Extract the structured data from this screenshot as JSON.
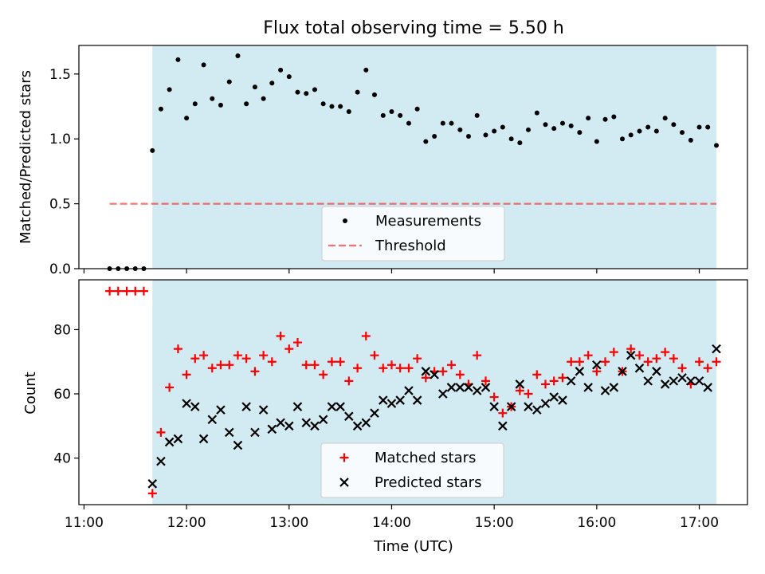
{
  "chart_data": {
    "title": "Flux total observing time = 5.50 h",
    "xlabel": "Time (UTC)",
    "x_ticks": [
      "11:00",
      "12:00",
      "13:00",
      "14:00",
      "15:00",
      "16:00",
      "17:00"
    ],
    "x_tick_hours": [
      11,
      12,
      13,
      14,
      15,
      16,
      17
    ],
    "xlim_hours": [
      10.95,
      17.47
    ],
    "shaded_region_hours": [
      11.667,
      17.167
    ],
    "colors": {
      "shade": "#add8e6",
      "measurement": "#000000",
      "threshold": "#ff0000",
      "matched": "#ff0000",
      "predicted": "#000000"
    },
    "panels": [
      {
        "type": "scatter",
        "ylabel": "Matched/Predicted stars",
        "ylim": [
          0,
          1.72
        ],
        "y_ticks": [
          0.0,
          0.5,
          1.0,
          1.5
        ],
        "y_tick_labels": [
          "0.0",
          "0.5",
          "1.0",
          "1.5"
        ],
        "legend_position": "lower-center",
        "series": [
          {
            "name": "Measurements",
            "marker": "dot",
            "x": [
              11.25,
              11.333,
              11.417,
              11.5,
              11.583,
              11.667,
              11.75,
              11.833,
              11.917,
              12.0,
              12.083,
              12.167,
              12.25,
              12.333,
              12.417,
              12.5,
              12.583,
              12.667,
              12.75,
              12.833,
              12.917,
              13.0,
              13.083,
              13.167,
              13.25,
              13.333,
              13.417,
              13.5,
              13.583,
              13.667,
              13.75,
              13.833,
              13.917,
              14.0,
              14.083,
              14.167,
              14.25,
              14.333,
              14.417,
              14.5,
              14.583,
              14.667,
              14.75,
              14.833,
              14.917,
              15.0,
              15.083,
              15.167,
              15.25,
              15.333,
              15.417,
              15.5,
              15.583,
              15.667,
              15.75,
              15.833,
              15.917,
              16.0,
              16.083,
              16.167,
              16.25,
              16.333,
              16.417,
              16.5,
              16.583,
              16.667,
              16.75,
              16.833,
              16.917,
              17.0,
              17.083,
              17.167
            ],
            "y": [
              0.0,
              0.0,
              0.0,
              0.0,
              0.0,
              0.91,
              1.23,
              1.38,
              1.61,
              1.16,
              1.27,
              1.57,
              1.31,
              1.26,
              1.44,
              1.64,
              1.27,
              1.4,
              1.31,
              1.43,
              1.53,
              1.48,
              1.36,
              1.35,
              1.38,
              1.27,
              1.25,
              1.25,
              1.21,
              1.36,
              1.53,
              1.34,
              1.18,
              1.21,
              1.18,
              1.12,
              1.23,
              0.98,
              1.02,
              1.12,
              1.12,
              1.07,
              1.02,
              1.18,
              1.03,
              1.06,
              1.09,
              1.0,
              0.97,
              1.07,
              1.2,
              1.11,
              1.08,
              1.12,
              1.1,
              1.05,
              1.16,
              0.98,
              1.15,
              1.17,
              1.0,
              1.03,
              1.06,
              1.09,
              1.06,
              1.16,
              1.11,
              1.05,
              0.99,
              1.09,
              1.09,
              0.95
            ]
          },
          {
            "name": "Threshold",
            "type": "line",
            "style": "dashed",
            "x": [
              11.25,
              17.167
            ],
            "y": [
              0.5,
              0.5
            ]
          }
        ]
      },
      {
        "type": "scatter",
        "ylabel": "Count",
        "ylim": [
          25.5,
          95.5
        ],
        "y_ticks": [
          40,
          60,
          80
        ],
        "y_tick_labels": [
          "40",
          "60",
          "80"
        ],
        "legend_position": "lower-center",
        "series": [
          {
            "name": "Matched stars",
            "marker": "plus",
            "x": [
              11.25,
              11.333,
              11.417,
              11.5,
              11.583,
              11.667,
              11.75,
              11.833,
              11.917,
              12.0,
              12.083,
              12.167,
              12.25,
              12.333,
              12.417,
              12.5,
              12.583,
              12.667,
              12.75,
              12.833,
              12.917,
              13.0,
              13.083,
              13.167,
              13.25,
              13.333,
              13.417,
              13.5,
              13.583,
              13.667,
              13.75,
              13.833,
              13.917,
              14.0,
              14.083,
              14.167,
              14.25,
              14.333,
              14.417,
              14.5,
              14.583,
              14.667,
              14.75,
              14.833,
              14.917,
              15.0,
              15.083,
              15.167,
              15.25,
              15.333,
              15.417,
              15.5,
              15.583,
              15.667,
              15.75,
              15.833,
              15.917,
              16.0,
              16.083,
              16.167,
              16.25,
              16.333,
              16.417,
              16.5,
              16.583,
              16.667,
              16.75,
              16.833,
              16.917,
              17.0,
              17.083,
              17.167
            ],
            "y": [
              92,
              92,
              92,
              92,
              92,
              29,
              48,
              62,
              74,
              66,
              71,
              72,
              68,
              69,
              69,
              72,
              71,
              67,
              72,
              70,
              78,
              74,
              76,
              69,
              69,
              66,
              70,
              70,
              64,
              68,
              78,
              72,
              68,
              69,
              68,
              68,
              71,
              65,
              67,
              67,
              69,
              66,
              63,
              72,
              64,
              59,
              54,
              56,
              61,
              60,
              66,
              63,
              64,
              65,
              70,
              70,
              72,
              67,
              70,
              73,
              67,
              74,
              72,
              70,
              71,
              73,
              71,
              68,
              63,
              70,
              68,
              70
            ]
          },
          {
            "name": "Predicted stars",
            "marker": "x",
            "x": [
              11.667,
              11.75,
              11.833,
              11.917,
              12.0,
              12.083,
              12.167,
              12.25,
              12.333,
              12.417,
              12.5,
              12.583,
              12.667,
              12.75,
              12.833,
              12.917,
              13.0,
              13.083,
              13.167,
              13.25,
              13.333,
              13.417,
              13.5,
              13.583,
              13.667,
              13.75,
              13.833,
              13.917,
              14.0,
              14.083,
              14.167,
              14.25,
              14.333,
              14.417,
              14.5,
              14.583,
              14.667,
              14.75,
              14.833,
              14.917,
              15.0,
              15.083,
              15.167,
              15.25,
              15.333,
              15.417,
              15.5,
              15.583,
              15.667,
              15.75,
              15.833,
              15.917,
              16.0,
              16.083,
              16.167,
              16.25,
              16.333,
              16.417,
              16.5,
              16.583,
              16.667,
              16.75,
              16.833,
              16.917,
              17.0,
              17.083,
              17.167
            ],
            "y": [
              32,
              39,
              45,
              46,
              57,
              56,
              46,
              52,
              55,
              48,
              44,
              56,
              48,
              55,
              49,
              51,
              50,
              56,
              51,
              50,
              52,
              56,
              56,
              53,
              50,
              51,
              54,
              58,
              57,
              58,
              61,
              58,
              67,
              66,
              60,
              62,
              62,
              62,
              61,
              62,
              56,
              50,
              56,
              63,
              56,
              55,
              57,
              59,
              58,
              64,
              67,
              62,
              69,
              61,
              62,
              67,
              72,
              68,
              64,
              67,
              63,
              64,
              65,
              64,
              64,
              62,
              74
            ]
          }
        ]
      }
    ]
  }
}
